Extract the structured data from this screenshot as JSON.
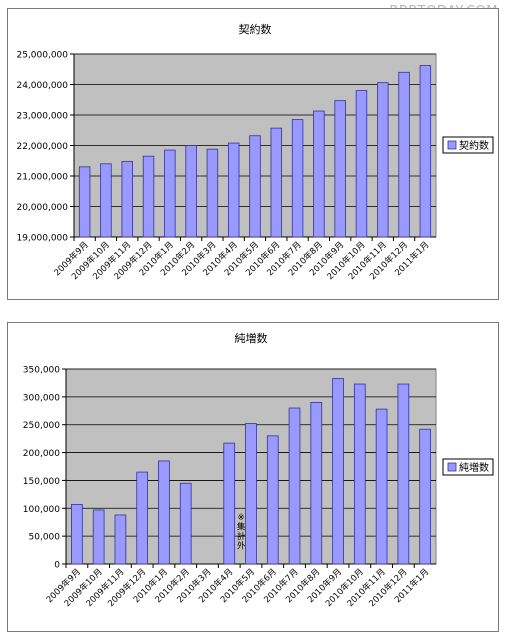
{
  "watermark": "RBBTODAY.COM",
  "colors": {
    "bar_fill": "#9999ff",
    "bar_stroke": "#333399",
    "plot_bg": "#c0c0c0",
    "grid": "#000000"
  },
  "chart_data": [
    {
      "type": "bar",
      "title": "契約数",
      "categories": [
        "2009年9月",
        "2009年10月",
        "2009年11月",
        "2009年12月",
        "2010年1月",
        "2010年2月",
        "2010年3月",
        "2010年4月",
        "2010年5月",
        "2010年6月",
        "2010年7月",
        "2010年8月",
        "2010年9月",
        "2010年10月",
        "2010年11月",
        "2010年12月",
        "2011年1月"
      ],
      "series": [
        {
          "name": "契約数",
          "values": [
            21300000,
            21400000,
            21480000,
            21650000,
            21850000,
            22000000,
            21880000,
            22080000,
            22320000,
            22570000,
            22850000,
            23130000,
            23470000,
            23800000,
            24060000,
            24400000,
            24620000
          ]
        }
      ],
      "ylim": [
        19000000,
        25000000
      ],
      "yticks": [
        "19,000,000",
        "20,000,000",
        "21,000,000",
        "22,000,000",
        "23,000,000",
        "24,000,000",
        "25,000,000"
      ],
      "legend": "right",
      "grid": true
    },
    {
      "type": "bar",
      "title": "純増数",
      "categories": [
        "2009年9月",
        "2009年10月",
        "2009年11月",
        "2009年12月",
        "2010年1月",
        "2010年2月",
        "2010年3月",
        "2010年4月",
        "2010年5月",
        "2010年6月",
        "2010年7月",
        "2010年8月",
        "2010年9月",
        "2010年10月",
        "2010年11月",
        "2010年12月",
        "2011年1月"
      ],
      "series": [
        {
          "name": "純増数",
          "values": [
            107000,
            97000,
            88000,
            165000,
            185000,
            145000,
            null,
            217000,
            252000,
            230000,
            280000,
            290000,
            333000,
            323000,
            278000,
            323000,
            242000
          ]
        }
      ],
      "ylim": [
        0,
        350000
      ],
      "yticks": [
        "0",
        "50,000",
        "100,000",
        "150,000",
        "200,000",
        "250,000",
        "300,000",
        "350,000"
      ],
      "legend": "right",
      "grid": true,
      "annotation": {
        "category_index": 6,
        "text": "※集計外"
      }
    }
  ]
}
